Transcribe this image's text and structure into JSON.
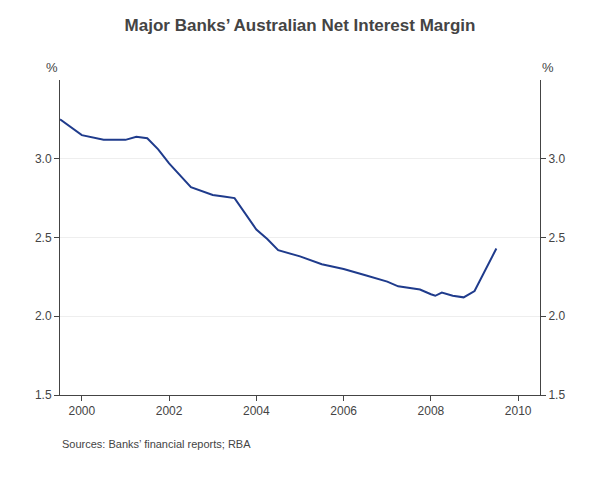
{
  "chart_data": {
    "type": "line",
    "title": "Major Banks’ Australian Net Interest Margin",
    "ylabel": "%",
    "y2label": "%",
    "annotations": [
      "Sources: Banks’ financial reports; RBA"
    ],
    "x": [
      1999.5,
      2000.0,
      2000.5,
      2001.0,
      2001.25,
      2001.5,
      2001.75,
      2002.0,
      2002.5,
      2003.0,
      2003.25,
      2003.5,
      2004.0,
      2004.25,
      2004.5,
      2005.0,
      2005.5,
      2006.0,
      2006.5,
      2007.0,
      2007.25,
      2007.5,
      2007.75,
      2008.0,
      2008.1,
      2008.25,
      2008.5,
      2008.75,
      2009.0,
      2009.5
    ],
    "values": [
      3.25,
      3.15,
      3.12,
      3.12,
      3.14,
      3.13,
      3.06,
      2.97,
      2.82,
      2.77,
      2.76,
      2.75,
      2.55,
      2.49,
      2.42,
      2.38,
      2.33,
      2.3,
      2.26,
      2.22,
      2.19,
      2.18,
      2.17,
      2.14,
      2.13,
      2.15,
      2.13,
      2.12,
      2.16,
      2.43
    ],
    "color": "#1f3b8c",
    "xlim": [
      1999.5,
      2010.5
    ],
    "xticks": [
      2000,
      2002,
      2004,
      2006,
      2008,
      2010
    ],
    "ylim": [
      1.5,
      3.5
    ],
    "yticks": [
      1.5,
      {
        "value": 2.0,
        "label": "2.0"
      },
      2.5,
      {
        "value": 3.0,
        "label": "3.0"
      }
    ],
    "y2lim": [
      1.5,
      3.5
    ],
    "y2ticks": [
      1.5,
      {
        "value": 2.0,
        "label": "2.0"
      },
      2.5,
      {
        "value": 3.0,
        "label": "3.0"
      }
    ],
    "grid": true
  }
}
